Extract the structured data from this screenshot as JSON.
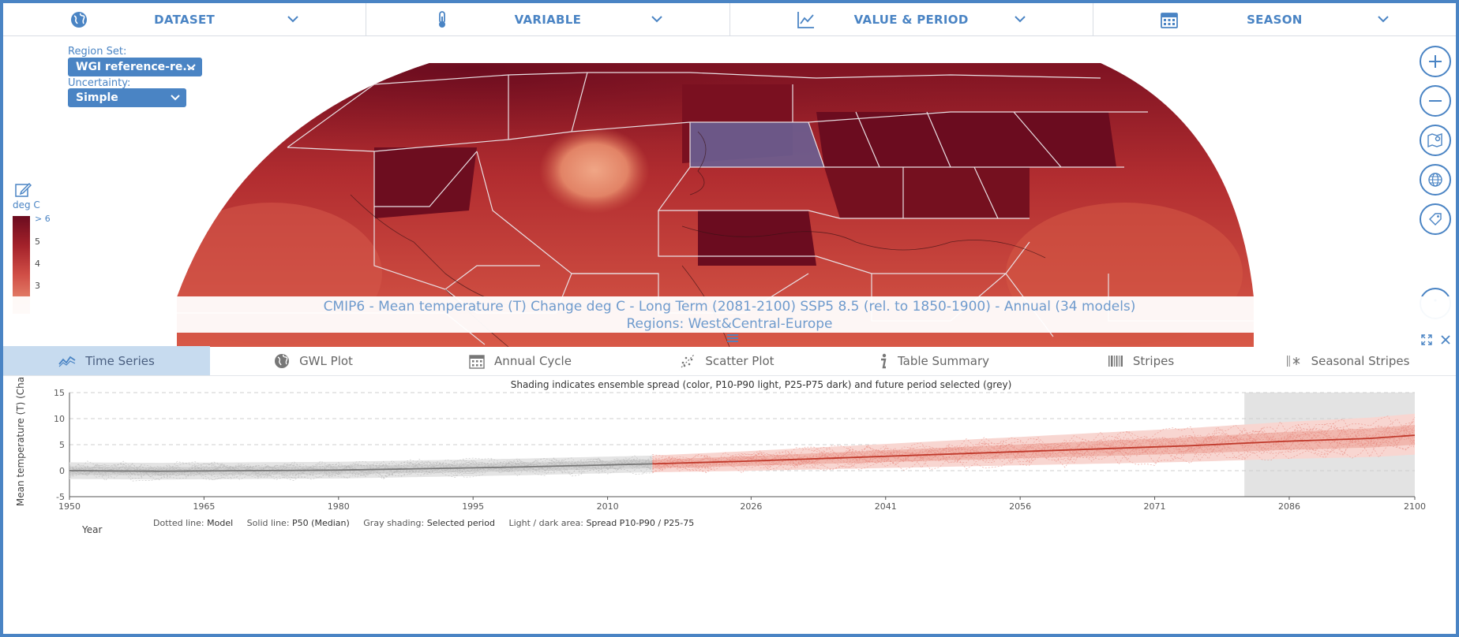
{
  "topbar": {
    "sections": [
      {
        "label": "DATASET",
        "icon": "globe-icon"
      },
      {
        "label": "VARIABLE",
        "icon": "thermometer-icon"
      },
      {
        "label": "VALUE & PERIOD",
        "icon": "line-chart-icon"
      },
      {
        "label": "SEASON",
        "icon": "calendar-icon"
      }
    ]
  },
  "map": {
    "region_set_label": "Region Set:",
    "region_set_value": "WGI reference-re...",
    "uncertainty_label": "Uncertainty:",
    "uncertainty_value": "Simple",
    "legend": {
      "unit": "deg C",
      "ticks": [
        "> 6",
        "5",
        "4",
        "3"
      ]
    },
    "colors": {
      "dark": "#6b0c1f",
      "mid": "#b7302d",
      "light": "#ee9a7c",
      "selected": "#6a5f92",
      "accent": "#4a84c4"
    }
  },
  "caption": {
    "line1": "CMIP6 - Mean temperature (T) Change deg C - Long Term (2081-2100) SSP5 8.5 (rel. to 1850-1900) - Annual (34 models)",
    "line2": "Regions: West&Central-Europe"
  },
  "tabs": [
    {
      "label": "Time Series",
      "icon": "time-series-icon",
      "active": true
    },
    {
      "label": "GWL Plot",
      "icon": "globe-icon",
      "active": false
    },
    {
      "label": "Annual Cycle",
      "icon": "calendar-icon",
      "active": false
    },
    {
      "label": "Scatter Plot",
      "icon": "scatter-icon",
      "active": false
    },
    {
      "label": "Table Summary",
      "icon": "info-icon",
      "active": false
    },
    {
      "label": "Stripes",
      "icon": "barcode-icon",
      "active": false
    },
    {
      "label": "Seasonal Stripes",
      "icon": "seasonal-stripes-icon",
      "active": false
    }
  ],
  "chart_data": {
    "type": "line",
    "title": "Shading indicates ensemble spread (color, P10-P90 light, P25-P75 dark) and future period selected (grey)",
    "ylabel": "Mean temperature (T) (Cha",
    "xlabel": "Year",
    "xlim": [
      1950,
      2100
    ],
    "ylim": [
      -5,
      15
    ],
    "yticks": [
      -5,
      0,
      5,
      10,
      15
    ],
    "xticks": [
      1950,
      1965,
      1980,
      1995,
      2010,
      2026,
      2041,
      2056,
      2071,
      2086,
      2100
    ],
    "selected_period": [
      2081,
      2100
    ],
    "historical_end": 2015,
    "series": [
      {
        "name": "P50 historical",
        "x": [
          1950,
          1960,
          1970,
          1980,
          1990,
          2000,
          2010,
          2015
        ],
        "values": [
          0.0,
          -0.1,
          0.0,
          0.1,
          0.4,
          0.7,
          1.1,
          1.3
        ]
      },
      {
        "name": "P50 SSP5 8.5",
        "x": [
          2015,
          2025,
          2035,
          2045,
          2055,
          2065,
          2075,
          2085,
          2095,
          2100
        ],
        "values": [
          1.3,
          1.8,
          2.4,
          3.0,
          3.6,
          4.2,
          4.8,
          5.6,
          6.2,
          6.8
        ]
      }
    ],
    "footer": [
      {
        "key": "Dotted line:",
        "value": "Model"
      },
      {
        "key": "Solid line:",
        "value": "P50 (Median)"
      },
      {
        "key": "Gray shading:",
        "value": "Selected period"
      },
      {
        "key": "Light / dark area:",
        "value": "Spread P10-P90 / P25-75"
      }
    ]
  }
}
